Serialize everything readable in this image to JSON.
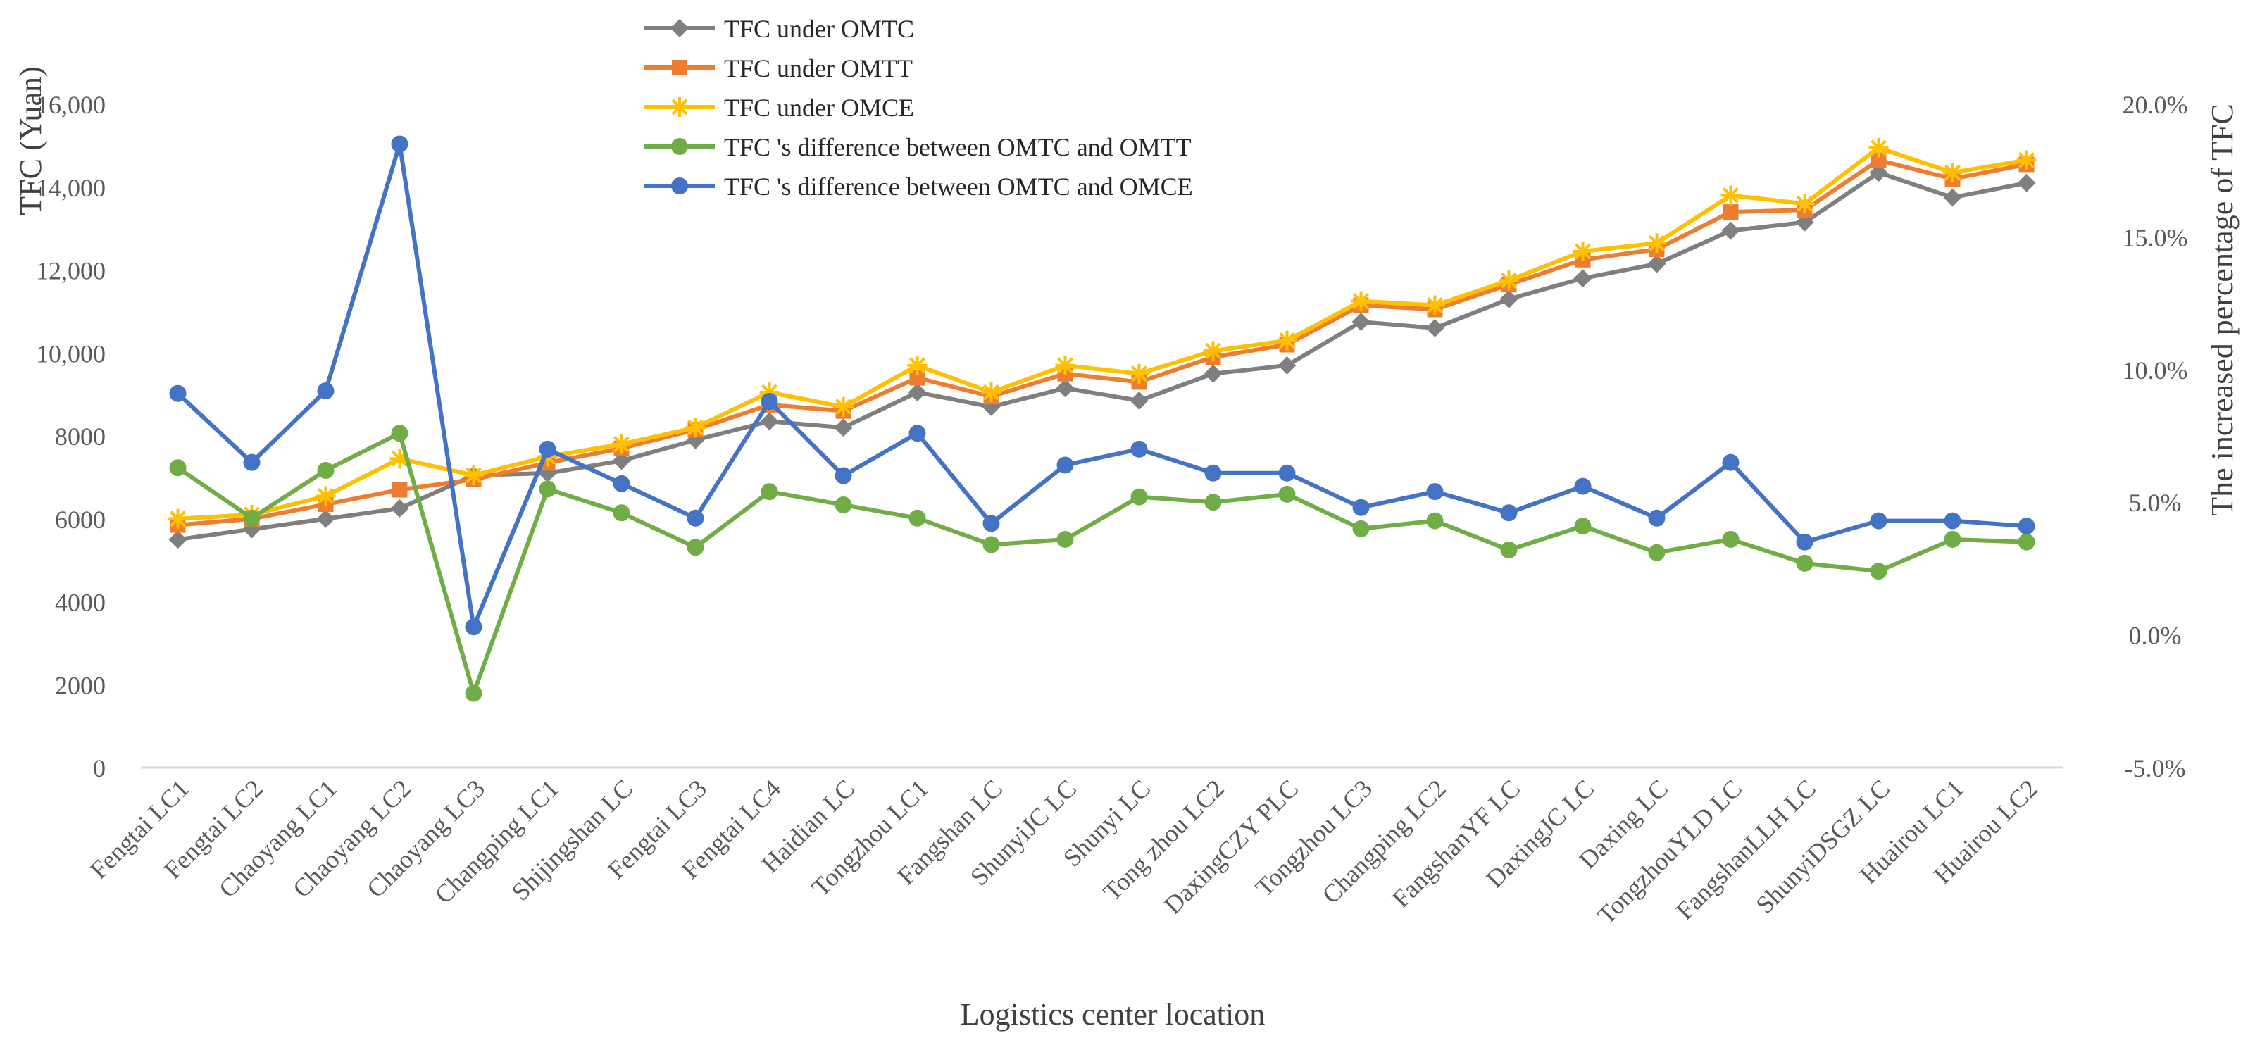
{
  "chart_data": {
    "type": "line",
    "xlabel": "Logistics center location",
    "ylabel": "TFC (Yuan)",
    "y2label": "The increased percentage of TFC",
    "ylim": [
      0,
      16000
    ],
    "yticks": [
      0,
      2000,
      4000,
      6000,
      8000,
      10000,
      12000,
      14000,
      16000
    ],
    "ytick_labels": [
      "0",
      "2000",
      "4000",
      "6000",
      "8000",
      "10,000",
      "12,000",
      "14,000",
      "16,000"
    ],
    "y2lim": [
      -5.0,
      20.0
    ],
    "y2ticks": [
      -5.0,
      0.0,
      5.0,
      10.0,
      15.0,
      20.0
    ],
    "y2tick_labels": [
      "-5.0%",
      "0.0%",
      "5.0%",
      "10.0%",
      "15.0%",
      "20.0%"
    ],
    "legend_position": "top-center",
    "categories": [
      "Fengtai LC1",
      "Fengtai LC2",
      "Chaoyang LC1",
      "Chaoyang LC2",
      "Chaoyang LC3",
      "Changping LC1",
      "Shijingshan LC",
      "Fengtai LC3",
      "Fengtai LC4",
      "Haidian LC",
      "Tongzhou LC1",
      "Fangshan LC",
      "ShunyiJC LC",
      "Shunyi LC",
      "Tong zhou LC2",
      "DaxingCZY PLC",
      "Tongzhou LC3",
      "Changping LC2",
      "FangshanYF LC",
      "DaxingJC LC",
      "Daxing LC",
      "TongzhouYLD LC",
      "FangshanLLH LC",
      "ShunyiDSGZ LC",
      "Huairou LC1",
      "Huairou LC2"
    ],
    "series": [
      {
        "name": "TFC under OMTC",
        "axis": "left",
        "marker": "diamond",
        "color": "#7f7f7f",
        "values": [
          5500,
          5750,
          6000,
          6250,
          7050,
          7100,
          7400,
          7900,
          8350,
          8200,
          9050,
          8700,
          9150,
          8850,
          9500,
          9700,
          10750,
          10600,
          11300,
          11800,
          12150,
          12950,
          13150,
          14350,
          13750,
          14100
        ]
      },
      {
        "name": "TFC  under OMTT",
        "axis": "left",
        "marker": "square",
        "color": "#ed7d31",
        "values": [
          5850,
          6000,
          6350,
          6700,
          6950,
          7350,
          7700,
          8150,
          8750,
          8600,
          9400,
          8950,
          9500,
          9300,
          9900,
          10200,
          11150,
          11050,
          11650,
          12250,
          12500,
          13400,
          13450,
          14650,
          14200,
          14550
        ]
      },
      {
        "name": "TFC  under OMCE",
        "axis": "left",
        "marker": "star",
        "color": "#ffc000",
        "values": [
          6000,
          6100,
          6550,
          7450,
          7050,
          7500,
          7800,
          8200,
          9050,
          8700,
          9700,
          9050,
          9700,
          9500,
          10050,
          10300,
          11250,
          11150,
          11750,
          12450,
          12650,
          13800,
          13600,
          14950,
          14350,
          14650
        ]
      },
      {
        "name": "TFC 's difference between OMTC and OMTT",
        "axis": "right",
        "marker": "circle",
        "color": "#70ad47",
        "values": [
          6.3,
          4.4,
          6.2,
          7.6,
          -2.2,
          5.5,
          4.6,
          3.3,
          5.4,
          4.9,
          4.4,
          3.4,
          3.6,
          5.2,
          5.0,
          5.3,
          4.0,
          4.3,
          3.2,
          4.1,
          3.1,
          3.6,
          2.7,
          2.4,
          3.6,
          3.5
        ]
      },
      {
        "name": "TFC 's difference between OMTC and OMCE",
        "axis": "right",
        "marker": "circle",
        "color": "#4472c4",
        "values": [
          9.1,
          6.5,
          9.2,
          18.5,
          0.3,
          7.0,
          5.7,
          4.4,
          8.8,
          6.0,
          7.6,
          4.2,
          6.4,
          7.0,
          6.1,
          6.1,
          4.8,
          5.4,
          4.6,
          5.6,
          4.4,
          6.5,
          3.5,
          4.3,
          4.3,
          4.1
        ]
      }
    ]
  }
}
